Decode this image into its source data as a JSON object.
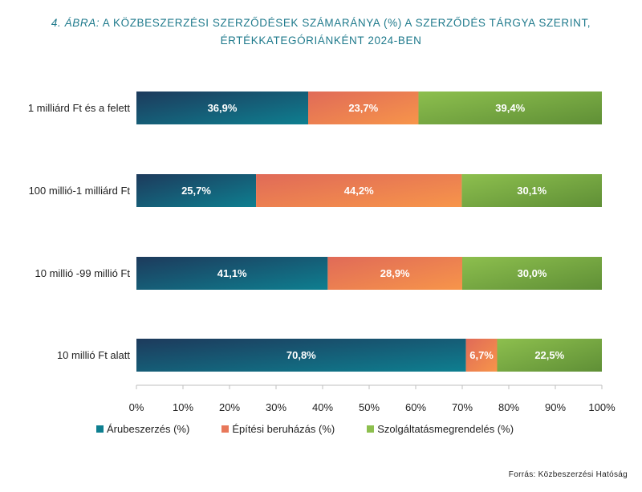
{
  "title": {
    "figure_label": "4. ÁBRA:",
    "line1": "A KÖZBESZERZÉSI SZERZŐDÉSEK SZÁMARÁNYA (%) A SZERZŐDÉS TÁRGYA SZERINT,",
    "line2": "ÉRTÉKKATEGÓRIÁNKÉNT 2024-BEN"
  },
  "source": "Forrás: Közbeszerzési Hatóság",
  "chart_data": {
    "type": "bar",
    "orientation": "horizontal",
    "stacked": true,
    "categories": [
      "1 milliárd Ft és a felett",
      "100 millió-1 milliárd Ft",
      "10 millió -99 millió Ft",
      "10 millió Ft alatt"
    ],
    "series": [
      {
        "name": "Árubeszerzés (%)",
        "values": [
          36.9,
          25.7,
          41.1,
          70.8
        ],
        "labels": [
          "36,9%",
          "25,7%",
          "41,1%",
          "70,8%"
        ],
        "color": "#0e7f90"
      },
      {
        "name": "Építési beruházás (%)",
        "values": [
          23.7,
          44.2,
          28.9,
          6.7
        ],
        "labels": [
          "23,7%",
          "44,2%",
          "28,9%",
          "6,7%"
        ],
        "color": "#e8785a"
      },
      {
        "name": "Szolgáltatásmegrendelés (%)",
        "values": [
          39.4,
          30.1,
          30.0,
          22.5
        ],
        "labels": [
          "39,4%",
          "30,1%",
          "30,0%",
          "22,5%"
        ],
        "color": "#8dbf4e"
      }
    ],
    "xlim": [
      0,
      100
    ],
    "xticks": [
      "0%",
      "10%",
      "20%",
      "30%",
      "40%",
      "50%",
      "60%",
      "70%",
      "80%",
      "90%",
      "100%"
    ],
    "grid": false,
    "legend_position": "bottom"
  }
}
